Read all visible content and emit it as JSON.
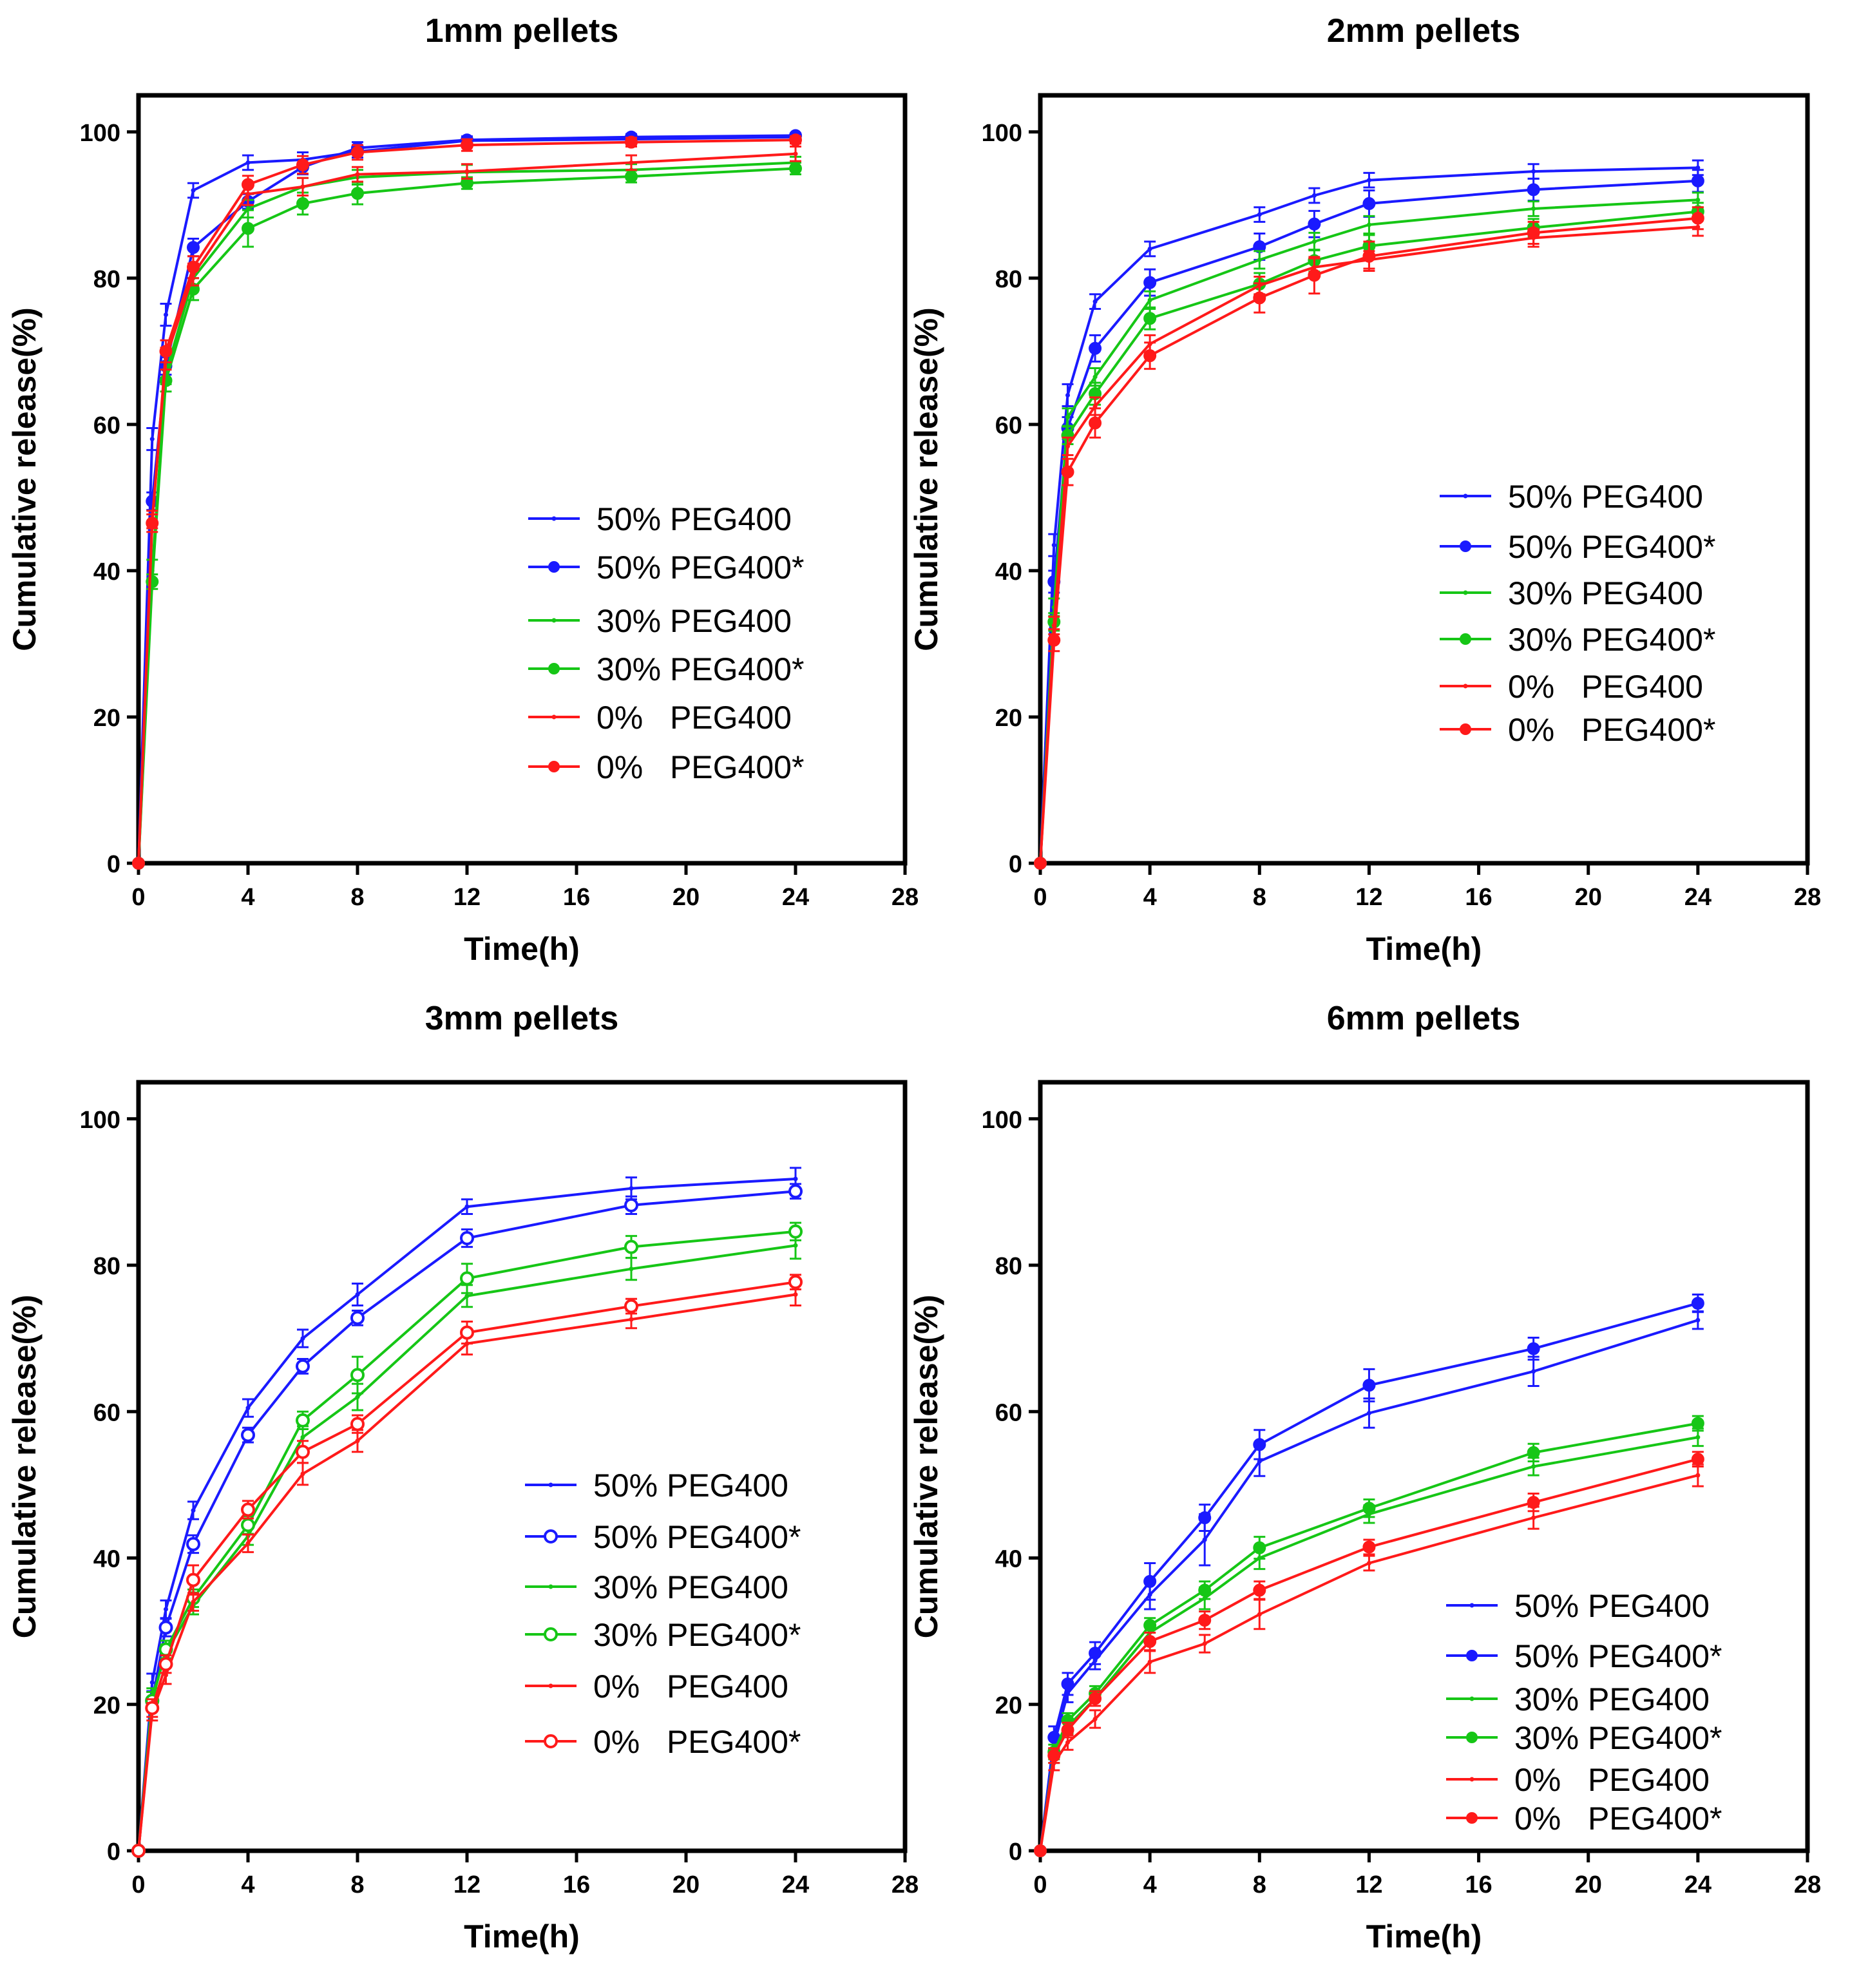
{
  "chart_data": [
    {
      "type": "line",
      "title": "1mm pellets",
      "xlabel": "Time(h)",
      "ylabel": "Cumulative release(%)",
      "xlim": [
        0,
        28
      ],
      "ylim": [
        0,
        105
      ],
      "xticks": [
        0,
        4,
        8,
        12,
        16,
        20,
        24,
        28
      ],
      "yticks": [
        0,
        20,
        40,
        60,
        80,
        100
      ],
      "legend_position": "center-right",
      "series": [
        {
          "name": "50% PEG400",
          "color": "#1a1aff",
          "marker": "small",
          "x": [
            0,
            0.5,
            1,
            2,
            4,
            6,
            8,
            12,
            18,
            24
          ],
          "y": [
            0,
            58,
            75,
            92,
            95.8,
            96.2,
            97.3,
            98.8,
            99.0,
            99.3
          ],
          "err": [
            0,
            1.5,
            1.5,
            1.0,
            1.0,
            1.0,
            0.8,
            0.5,
            0.4,
            0.4
          ]
        },
        {
          "name": "50% PEG400*",
          "color": "#1a1aff",
          "marker": "filled",
          "x": [
            0,
            0.5,
            1,
            2,
            4,
            6,
            8,
            12,
            18,
            24
          ],
          "y": [
            0,
            49.5,
            68,
            84.2,
            90.5,
            95.2,
            97.8,
            98.9,
            99.3,
            99.5
          ],
          "err": [
            0,
            1.2,
            1.2,
            1.2,
            1.0,
            1.0,
            0.8,
            0.5,
            0.4,
            0.3
          ]
        },
        {
          "name": "30% PEG400",
          "color": "#16c616",
          "marker": "small",
          "x": [
            0,
            0.5,
            1,
            2,
            4,
            6,
            8,
            12,
            18,
            24
          ],
          "y": [
            0,
            40,
            67,
            80,
            89.5,
            92.5,
            93.8,
            94.5,
            94.8,
            95.8
          ],
          "err": [
            0,
            1.5,
            1.5,
            1.5,
            1.2,
            1.2,
            1.0,
            1.0,
            0.8,
            0.8
          ]
        },
        {
          "name": "30% PEG400*",
          "color": "#16c616",
          "marker": "filled",
          "x": [
            0,
            0.5,
            1,
            2,
            4,
            6,
            8,
            12,
            18,
            24
          ],
          "y": [
            0,
            38.5,
            66,
            78.5,
            86.8,
            90.2,
            91.6,
            93.0,
            93.9,
            95.0
          ],
          "err": [
            0,
            1.0,
            1.5,
            1.5,
            2.5,
            1.5,
            1.5,
            0.8,
            0.8,
            0.8
          ]
        },
        {
          "name": "0%   PEG400",
          "color": "#ff1a1a",
          "marker": "small",
          "x": [
            0,
            0.5,
            1,
            2,
            4,
            6,
            8,
            12,
            18,
            24
          ],
          "y": [
            0,
            47,
            69,
            80.5,
            91.5,
            92.5,
            94.2,
            94.6,
            95.8,
            97.0
          ],
          "err": [
            0,
            1.2,
            1.5,
            1.5,
            1.5,
            1.2,
            1.0,
            1.0,
            1.0,
            1.0
          ]
        },
        {
          "name": "0%   PEG400*",
          "color": "#ff1a1a",
          "marker": "filled",
          "x": [
            0,
            0.5,
            1,
            2,
            4,
            6,
            8,
            12,
            18,
            24
          ],
          "y": [
            0,
            46.5,
            70,
            81.5,
            92.8,
            95.5,
            97.2,
            98.2,
            98.6,
            98.9
          ],
          "err": [
            0,
            1.2,
            1.5,
            1.5,
            1.2,
            1.2,
            1.0,
            0.8,
            0.6,
            0.5
          ]
        }
      ]
    },
    {
      "type": "line",
      "title": "2mm pellets",
      "xlabel": "Time(h)",
      "ylabel": "Cumulative release(%)",
      "xlim": [
        0,
        28
      ],
      "ylim": [
        0,
        105
      ],
      "xticks": [
        0,
        4,
        8,
        12,
        16,
        20,
        24,
        28
      ],
      "yticks": [
        0,
        20,
        40,
        60,
        80,
        100
      ],
      "legend_position": "center-right",
      "series": [
        {
          "name": "50% PEG400",
          "color": "#1a1aff",
          "marker": "small",
          "x": [
            0,
            0.5,
            1,
            2,
            4,
            8,
            10,
            12,
            18,
            24
          ],
          "y": [
            0,
            43.5,
            64,
            76.8,
            84,
            88.7,
            91.3,
            93.4,
            94.6,
            95.1
          ],
          "err": [
            0,
            1.5,
            1.5,
            1.0,
            1.0,
            1.0,
            1.0,
            1.0,
            1.0,
            1.0
          ]
        },
        {
          "name": "50% PEG400*",
          "color": "#1a1aff",
          "marker": "filled",
          "x": [
            0,
            0.5,
            1,
            2,
            4,
            8,
            10,
            12,
            18,
            24
          ],
          "y": [
            0,
            38.5,
            59.5,
            70.4,
            79.4,
            84.3,
            87.4,
            90.2,
            92.1,
            93.3
          ],
          "err": [
            0,
            1.5,
            1.5,
            1.8,
            1.8,
            1.8,
            1.8,
            1.8,
            1.5,
            1.5
          ]
        },
        {
          "name": "30% PEG400",
          "color": "#16c616",
          "marker": "small",
          "x": [
            0,
            0.5,
            1,
            2,
            4,
            8,
            10,
            12,
            18,
            24
          ],
          "y": [
            0,
            35,
            61,
            66.5,
            77,
            82.5,
            85,
            87.3,
            89.5,
            90.7
          ],
          "err": [
            0,
            1.2,
            1.2,
            1.2,
            1.2,
            1.2,
            1.2,
            1.2,
            1.0,
            1.0
          ]
        },
        {
          "name": "30% PEG400*",
          "color": "#16c616",
          "marker": "filled",
          "x": [
            0,
            0.5,
            1,
            2,
            4,
            8,
            10,
            12,
            18,
            24
          ],
          "y": [
            0,
            33,
            58.5,
            64.2,
            74.5,
            79.2,
            82.4,
            84.4,
            86.9,
            89.1
          ],
          "err": [
            0,
            1.2,
            1.2,
            1.5,
            1.5,
            1.5,
            1.5,
            1.5,
            1.2,
            1.2
          ]
        },
        {
          "name": "0%   PEG400",
          "color": "#ff1a1a",
          "marker": "small",
          "x": [
            0,
            0.5,
            1,
            2,
            4,
            8,
            10,
            12,
            18,
            24
          ],
          "y": [
            0,
            32.5,
            57,
            62.5,
            71,
            79,
            81.5,
            82.5,
            85.5,
            87
          ],
          "err": [
            0,
            1.2,
            1.2,
            1.2,
            1.2,
            1.2,
            1.2,
            1.2,
            1.2,
            1.2
          ]
        },
        {
          "name": "0%   PEG400*",
          "color": "#ff1a1a",
          "marker": "filled",
          "x": [
            0,
            0.5,
            1,
            2,
            4,
            8,
            10,
            12,
            18,
            24
          ],
          "y": [
            0,
            30.5,
            53.5,
            60.2,
            69.4,
            77.3,
            80.4,
            83.0,
            86.2,
            88.2
          ],
          "err": [
            0,
            1.5,
            1.8,
            2.0,
            1.8,
            2.0,
            2.5,
            2.0,
            1.5,
            1.5
          ]
        }
      ]
    },
    {
      "type": "line",
      "title": "3mm pellets",
      "xlabel": "Time(h)",
      "ylabel": "Cumulative release(%)",
      "xlim": [
        0,
        28
      ],
      "ylim": [
        0,
        105
      ],
      "xticks": [
        0,
        4,
        8,
        12,
        16,
        20,
        24,
        28
      ],
      "yticks": [
        0,
        20,
        40,
        60,
        80,
        100
      ],
      "legend_position": "bottom-right",
      "series": [
        {
          "name": "50% PEG400",
          "color": "#1a1aff",
          "marker": "small",
          "x": [
            0,
            0.5,
            1,
            2,
            4,
            6,
            8,
            12,
            18,
            24
          ],
          "y": [
            0,
            23,
            33,
            46.5,
            60.5,
            70,
            76,
            88,
            90.5,
            91.8
          ],
          "err": [
            0,
            1.2,
            1.2,
            1.2,
            1.2,
            1.2,
            1.5,
            1.0,
            1.5,
            1.5
          ]
        },
        {
          "name": "50% PEG400*",
          "color": "#1a1aff",
          "marker": "hollow",
          "x": [
            0,
            0.5,
            1,
            2,
            4,
            6,
            8,
            12,
            18,
            24
          ],
          "y": [
            0,
            20.5,
            30.5,
            41.9,
            56.8,
            66.2,
            72.8,
            83.7,
            88.2,
            90.1
          ],
          "err": [
            0,
            1.2,
            1.2,
            1.2,
            1.0,
            1.0,
            1.0,
            1.2,
            1.2,
            1.0
          ]
        },
        {
          "name": "30% PEG400",
          "color": "#16c616",
          "marker": "small",
          "x": [
            0,
            0.5,
            1,
            2,
            4,
            6,
            8,
            12,
            18,
            24
          ],
          "y": [
            0,
            21,
            27,
            33.5,
            43,
            56.5,
            62,
            75.8,
            79.5,
            82.7
          ],
          "err": [
            0,
            1.2,
            1.2,
            1.2,
            1.2,
            1.5,
            1.8,
            1.5,
            1.5,
            1.8
          ]
        },
        {
          "name": "30% PEG400*",
          "color": "#16c616",
          "marker": "hollow",
          "x": [
            0,
            0.5,
            1,
            2,
            4,
            6,
            8,
            12,
            18,
            24
          ],
          "y": [
            0,
            20.5,
            27.5,
            34.5,
            44.5,
            58.8,
            65,
            78.2,
            82.5,
            84.6
          ],
          "err": [
            0,
            1.2,
            1.2,
            1.2,
            1.2,
            1.2,
            2.5,
            2.0,
            1.5,
            1.2
          ]
        },
        {
          "name": "0%   PEG400",
          "color": "#ff1a1a",
          "marker": "small",
          "x": [
            0,
            0.5,
            1,
            2,
            4,
            6,
            8,
            12,
            18,
            24
          ],
          "y": [
            0,
            19,
            24,
            34,
            42,
            51.5,
            56,
            69.3,
            72.6,
            76
          ],
          "err": [
            0,
            1.2,
            1.2,
            1.2,
            1.2,
            1.5,
            1.5,
            1.5,
            1.2,
            1.5
          ]
        },
        {
          "name": "0%   PEG400*",
          "color": "#ff1a1a",
          "marker": "hollow",
          "x": [
            0,
            0.5,
            1,
            2,
            4,
            6,
            8,
            12,
            18,
            24
          ],
          "y": [
            0,
            19.5,
            25.5,
            37,
            46.6,
            54.5,
            58.3,
            70.8,
            74.4,
            77.7
          ],
          "err": [
            0,
            1.2,
            1.2,
            2.0,
            1.2,
            1.5,
            1.2,
            1.5,
            1.0,
            1.0
          ]
        }
      ]
    },
    {
      "type": "line",
      "title": "6mm pellets",
      "xlabel": "Time(h)",
      "ylabel": "Cumulative release(%)",
      "xlim": [
        0,
        28
      ],
      "ylim": [
        0,
        105
      ],
      "xticks": [
        0,
        4,
        8,
        12,
        16,
        20,
        24,
        28
      ],
      "yticks": [
        0,
        20,
        40,
        60,
        80,
        100
      ],
      "legend_position": "bottom-right",
      "series": [
        {
          "name": "50% PEG400",
          "color": "#1a1aff",
          "marker": "small",
          "x": [
            0,
            0.5,
            1,
            2,
            4,
            6,
            8,
            12,
            18,
            24
          ],
          "y": [
            0,
            14.5,
            21.5,
            26,
            35,
            42.5,
            53.2,
            59.8,
            65.5,
            72.5
          ],
          "err": [
            0,
            1.2,
            1.2,
            1.2,
            2.0,
            3.5,
            2.0,
            2.0,
            2.0,
            1.2
          ]
        },
        {
          "name": "50% PEG400*",
          "color": "#1a1aff",
          "marker": "filled",
          "x": [
            0,
            0.5,
            1,
            2,
            4,
            6,
            8,
            12,
            18,
            24
          ],
          "y": [
            0,
            15.5,
            22.8,
            27,
            36.8,
            45.5,
            55.5,
            63.6,
            68.6,
            74.8
          ],
          "err": [
            0,
            1.5,
            1.5,
            1.5,
            2.5,
            1.8,
            2.0,
            2.2,
            1.5,
            1.2
          ]
        },
        {
          "name": "30% PEG400",
          "color": "#16c616",
          "marker": "small",
          "x": [
            0,
            0.5,
            1,
            2,
            4,
            6,
            8,
            12,
            18,
            24
          ],
          "y": [
            0,
            13,
            17,
            20.8,
            29.8,
            34.5,
            40,
            46,
            52.5,
            56.5
          ],
          "err": [
            0,
            1.0,
            1.0,
            1.0,
            1.0,
            1.5,
            1.5,
            1.2,
            1.2,
            1.2
          ]
        },
        {
          "name": "30% PEG400*",
          "color": "#16c616",
          "marker": "filled",
          "x": [
            0,
            0.5,
            1,
            2,
            4,
            6,
            8,
            12,
            18,
            24
          ],
          "y": [
            0,
            13.5,
            17.8,
            21.5,
            30.8,
            35.6,
            41.4,
            46.8,
            54.4,
            58.4
          ],
          "err": [
            0,
            1.0,
            1.0,
            1.0,
            1.0,
            1.2,
            1.5,
            1.2,
            1.2,
            1.0
          ]
        },
        {
          "name": "0%   PEG400",
          "color": "#ff1a1a",
          "marker": "small",
          "x": [
            0,
            0.5,
            1,
            2,
            4,
            6,
            8,
            12,
            18,
            24
          ],
          "y": [
            0,
            12,
            14.8,
            18,
            25.8,
            28.3,
            32.3,
            39.3,
            45.5,
            51.3
          ],
          "err": [
            0,
            1.0,
            1.0,
            1.2,
            1.5,
            1.2,
            2.0,
            1.0,
            1.5,
            1.5
          ]
        },
        {
          "name": "0%   PEG400*",
          "color": "#ff1a1a",
          "marker": "filled",
          "x": [
            0,
            0.5,
            1,
            2,
            4,
            6,
            8,
            12,
            18,
            24
          ],
          "y": [
            0,
            13,
            16.5,
            20.8,
            28.6,
            31.5,
            35.6,
            41.5,
            47.6,
            53.5
          ],
          "err": [
            0,
            1.0,
            1.0,
            1.0,
            1.2,
            1.2,
            1.2,
            1.0,
            1.2,
            1.0
          ]
        }
      ]
    }
  ]
}
